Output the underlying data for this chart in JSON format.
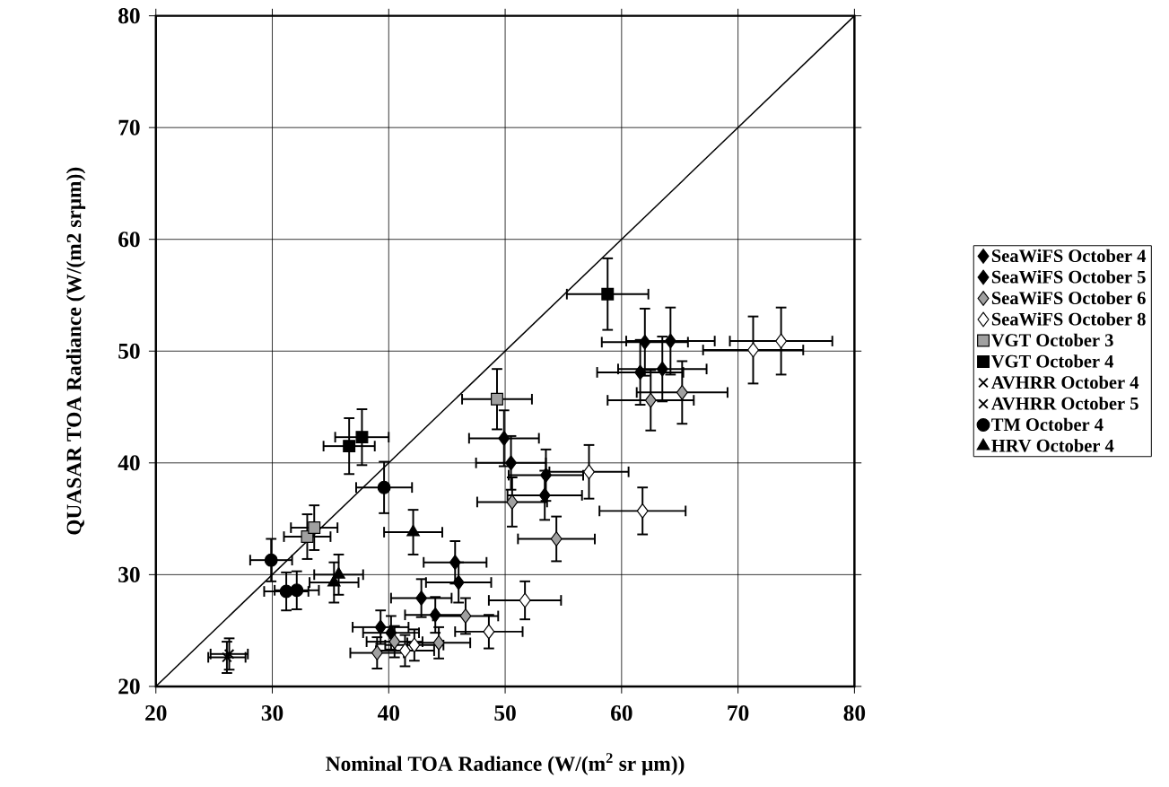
{
  "chart_data": {
    "type": "scatter",
    "xlabel": "Nominal TOA Radiance (W/(m$^{2}$ sr μm))",
    "ylabel": "QUASAR TOA Radiance (W/(m2 srμm))",
    "xlim": [
      20,
      80
    ],
    "ylim": [
      20,
      80
    ],
    "xticks": [
      20,
      30,
      40,
      50,
      60,
      70,
      80
    ],
    "yticks": [
      20,
      30,
      40,
      50,
      60,
      70,
      80
    ],
    "grid": true,
    "legend": "right",
    "series": [
      {
        "name": "SeaWiFS October 4",
        "color": "#000000",
        "marker": "diamond",
        "x": [
          62,
          64.2,
          49.9,
          53.5,
          45.7,
          42.8,
          39.3
        ],
        "values": [
          50.8,
          50.9,
          42.2,
          38.9,
          31.1,
          27.9,
          25.3
        ],
        "xerrors": [
          3.7,
          3.8,
          3,
          3.2,
          2.7,
          2.6,
          2.4
        ],
        "errors": [
          3,
          3,
          2.5,
          2.3,
          1.9,
          1.7,
          1.5
        ]
      },
      {
        "name": "SeaWiFS October 5",
        "color": "#000000",
        "marker": "diamond",
        "x": [
          61.6,
          63.5,
          50.5,
          53.4,
          46,
          44,
          40.2
        ],
        "values": [
          48.1,
          48.4,
          40,
          37.1,
          29.3,
          26.4,
          24.8
        ],
        "xerrors": [
          3.7,
          3.8,
          3,
          3.2,
          2.8,
          2.6,
          2.4
        ],
        "errors": [
          2.9,
          2.9,
          2.4,
          2.2,
          1.8,
          1.6,
          1.5
        ]
      },
      {
        "name": "SeaWiFS October 6",
        "color": "#a0a0a0",
        "marker": "diamond",
        "x": [
          62.5,
          65.2,
          50.6,
          54.4,
          46.6,
          44.3,
          39,
          40.5
        ],
        "values": [
          45.6,
          46.3,
          36.5,
          33.2,
          26.3,
          23.9,
          23,
          24
        ],
        "xerrors": [
          3.7,
          3.9,
          3,
          3.3,
          2.8,
          2.7,
          2.3,
          2.4
        ],
        "errors": [
          2.7,
          2.8,
          2.2,
          2,
          1.6,
          1.4,
          1.4,
          1.4
        ]
      },
      {
        "name": "SeaWiFS October 8",
        "color": "#ffffff",
        "marker": "diamond",
        "x": [
          71.3,
          73.7,
          57.2,
          61.8,
          51.7,
          48.6,
          41.4,
          42.2
        ],
        "values": [
          50.1,
          50.9,
          39.2,
          35.7,
          27.7,
          24.9,
          23.2,
          23.7
        ],
        "xerrors": [
          4.3,
          4.4,
          3.4,
          3.7,
          3.1,
          2.9,
          2.5,
          2.5
        ],
        "errors": [
          3,
          3,
          2.4,
          2.1,
          1.7,
          1.5,
          1.4,
          1.4
        ]
      },
      {
        "name": "VGT October 3",
        "color": "#a0a0a0",
        "marker": "square",
        "x": [
          49.3,
          33,
          33.6
        ],
        "values": [
          45.7,
          33.4,
          34.2
        ],
        "xerrors": [
          3,
          2,
          2
        ],
        "errors": [
          2.7,
          2,
          2
        ]
      },
      {
        "name": "VGT October 4",
        "color": "#000000",
        "marker": "square",
        "x": [
          58.8,
          36.6,
          37.7
        ],
        "values": [
          55.1,
          41.5,
          42.3
        ],
        "xerrors": [
          3.5,
          2.2,
          2.3
        ],
        "errors": [
          3.2,
          2.5,
          2.5
        ]
      },
      {
        "name": "AVHRR October 4",
        "color": "#000000",
        "marker": "cross",
        "x": [
          26.3
        ],
        "values": [
          22.9
        ],
        "xerrors": [
          1.6
        ],
        "errors": [
          1.4
        ]
      },
      {
        "name": "AVHRR October 5",
        "color": "#000000",
        "marker": "cross",
        "x": [
          26.1
        ],
        "values": [
          22.6
        ],
        "xerrors": [
          1.6
        ],
        "errors": [
          1.4
        ]
      },
      {
        "name": "TM October 4",
        "color": "#000000",
        "marker": "circle",
        "x": [
          39.6,
          29.9,
          31.2,
          32.1
        ],
        "values": [
          37.8,
          31.3,
          28.5,
          28.6
        ],
        "xerrors": [
          2.4,
          1.8,
          1.9,
          1.9
        ],
        "errors": [
          2.3,
          1.9,
          1.7,
          1.7
        ]
      },
      {
        "name": "HRV October 4",
        "color": "#000000",
        "marker": "triangle",
        "x": [
          42.1,
          35.7,
          35.3
        ],
        "values": [
          33.8,
          30,
          29.3
        ],
        "xerrors": [
          2.5,
          2.1,
          2.1
        ],
        "errors": [
          2,
          1.8,
          1.8
        ]
      },
      {
        "type": "line",
        "color": "#000000",
        "marker": "none",
        "x": [
          20,
          80
        ],
        "values": [
          20,
          80
        ]
      }
    ]
  }
}
